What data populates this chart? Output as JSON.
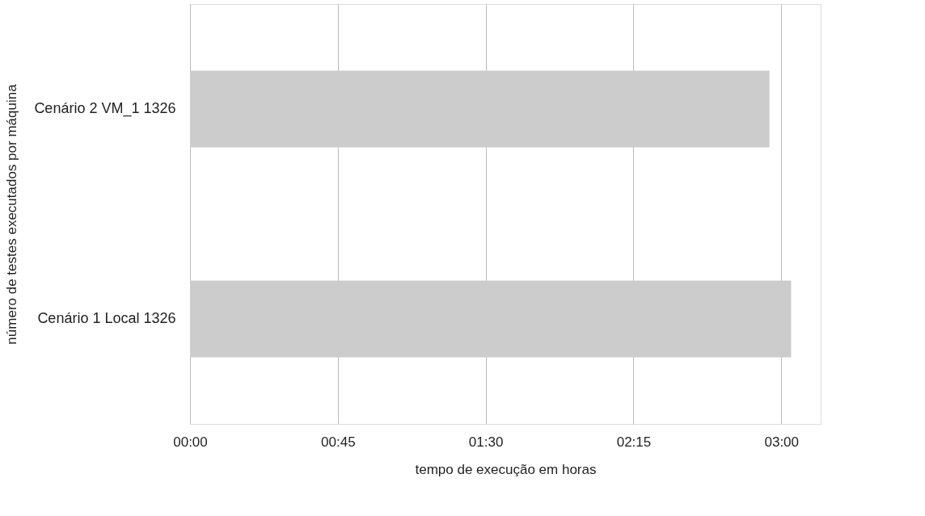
{
  "chart_data": {
    "type": "bar",
    "orientation": "horizontal",
    "xlabel": "tempo de execução em horas",
    "ylabel": "número de testes executados por máquina",
    "categories": [
      "Cenário 2   VM_1 1326",
      "Cenário 1   Local 1326"
    ],
    "values": [
      2.94,
      3.05
    ],
    "color": "#cccccc",
    "xlim": [
      0,
      3.2
    ],
    "xticks": [
      {
        "value": 0,
        "label": "00:00"
      },
      {
        "value": 0.75,
        "label": "00:45"
      },
      {
        "value": 1.5,
        "label": "01:30"
      },
      {
        "value": 2.25,
        "label": "02:15"
      },
      {
        "value": 3,
        "label": "03:00"
      }
    ],
    "grid": "x"
  }
}
